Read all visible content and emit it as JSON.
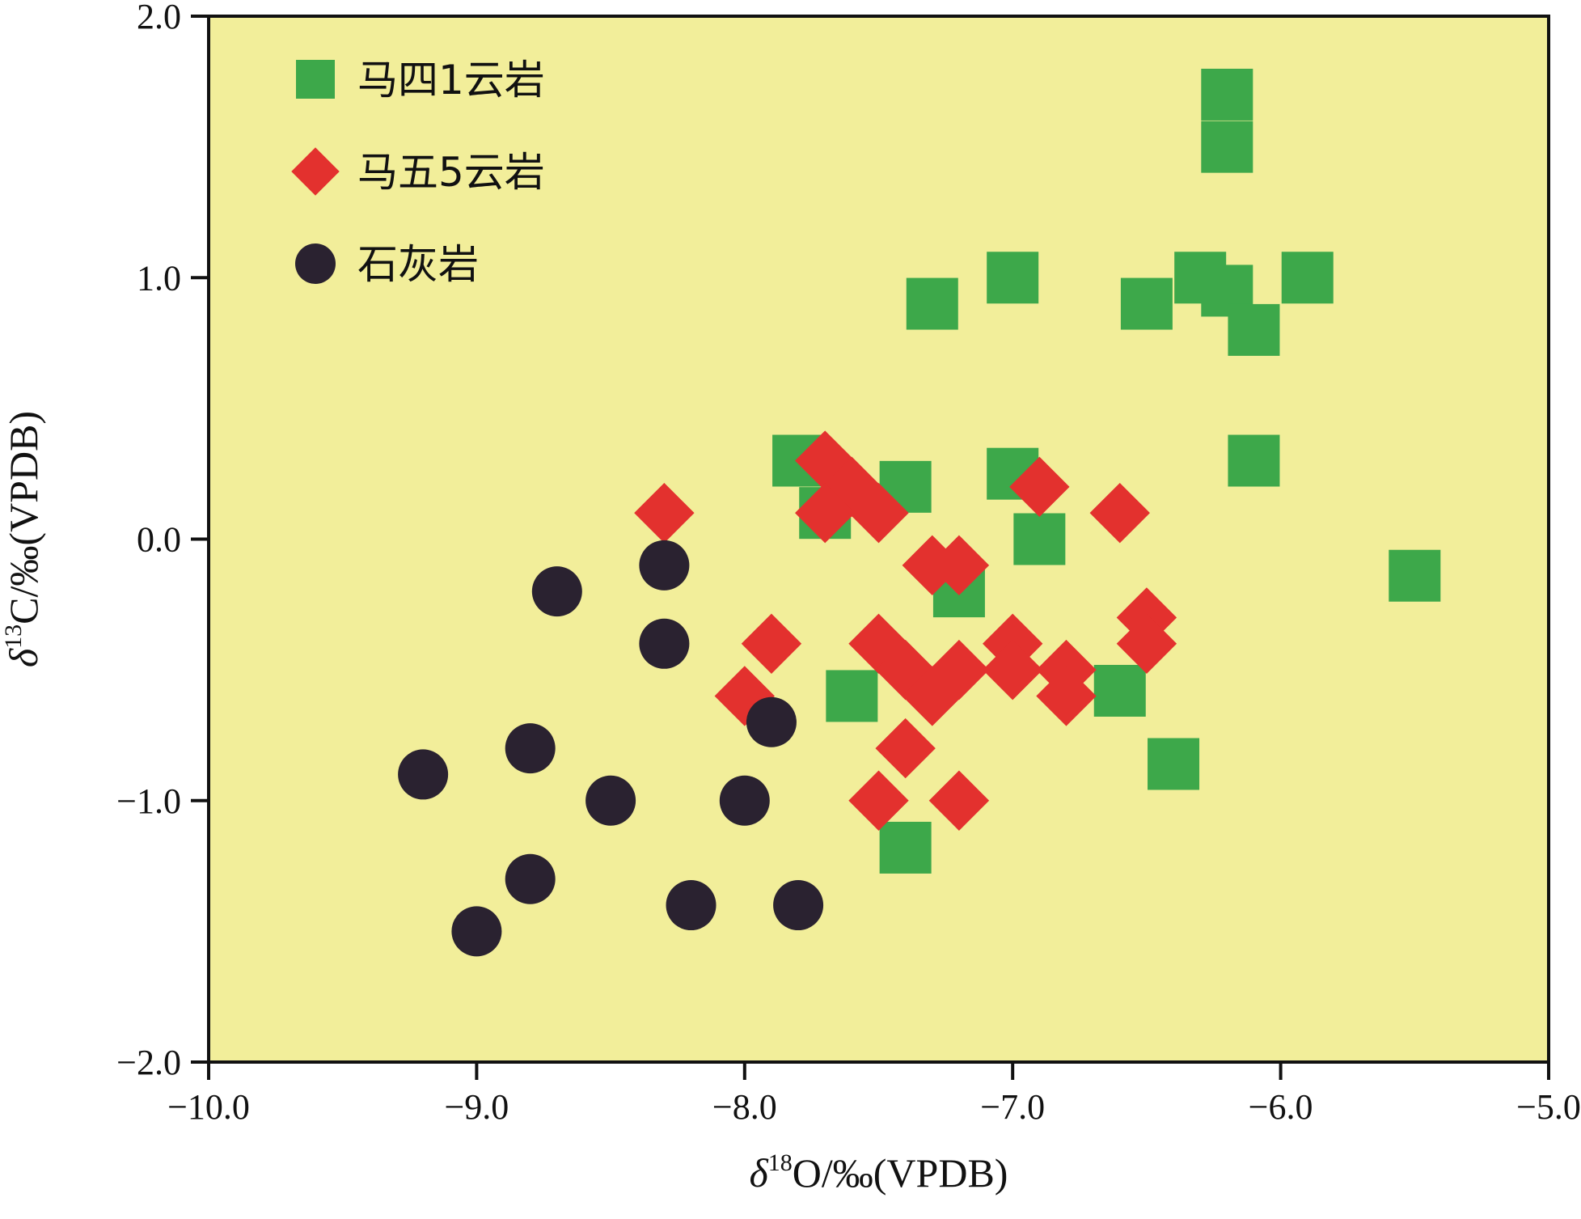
{
  "chart_data": {
    "type": "scatter",
    "xlabel_parts": [
      "δ",
      "18",
      "O/‰(VPDB)"
    ],
    "ylabel_parts": [
      "δ",
      "13",
      "C/‰(VPDB)"
    ],
    "xlim": [
      -10.0,
      -5.0
    ],
    "ylim": [
      -2.0,
      2.0
    ],
    "x_ticks": [
      -10.0,
      -9.0,
      -8.0,
      -7.0,
      -6.0,
      -5.0
    ],
    "x_tick_labels": [
      "−10.0",
      "−9.0",
      "−8.0",
      "−7.0",
      "−6.0",
      "−5.0"
    ],
    "y_ticks": [
      -2.0,
      -1.0,
      0.0,
      1.0,
      2.0
    ],
    "y_tick_labels": [
      "−2.0",
      "−1.0",
      "0.0",
      "1.0",
      "2.0"
    ],
    "grid": false,
    "legend_position": "top-left",
    "background_color": "#F2EE9A",
    "series": [
      {
        "name": "马四1云岩",
        "marker": "square",
        "color": "#3DA84A",
        "points": [
          [
            -6.2,
            1.7
          ],
          [
            -6.2,
            1.5
          ],
          [
            -7.0,
            1.0
          ],
          [
            -6.3,
            1.0
          ],
          [
            -6.2,
            0.95
          ],
          [
            -5.9,
            1.0
          ],
          [
            -7.3,
            0.9
          ],
          [
            -6.5,
            0.9
          ],
          [
            -6.1,
            0.8
          ],
          [
            -7.8,
            0.3
          ],
          [
            -7.4,
            0.2
          ],
          [
            -7.0,
            0.25
          ],
          [
            -6.1,
            0.3
          ],
          [
            -7.7,
            0.1
          ],
          [
            -6.9,
            0.0
          ],
          [
            -7.2,
            -0.2
          ],
          [
            -5.5,
            -0.14
          ],
          [
            -7.6,
            -0.6
          ],
          [
            -6.6,
            -0.58
          ],
          [
            -6.4,
            -0.86
          ],
          [
            -7.4,
            -1.18
          ]
        ]
      },
      {
        "name": "马五5云岩",
        "marker": "diamond",
        "color": "#E3312E",
        "points": [
          [
            -7.7,
            0.3
          ],
          [
            -7.6,
            0.2
          ],
          [
            -7.7,
            0.1
          ],
          [
            -7.5,
            0.1
          ],
          [
            -8.3,
            0.1
          ],
          [
            -6.9,
            0.2
          ],
          [
            -6.6,
            0.1
          ],
          [
            -7.3,
            -0.1
          ],
          [
            -7.2,
            -0.1
          ],
          [
            -7.9,
            -0.4
          ],
          [
            -7.5,
            -0.4
          ],
          [
            -7.4,
            -0.5
          ],
          [
            -7.3,
            -0.6
          ],
          [
            -7.2,
            -0.5
          ],
          [
            -7.0,
            -0.4
          ],
          [
            -7.0,
            -0.5
          ],
          [
            -6.8,
            -0.5
          ],
          [
            -6.8,
            -0.6
          ],
          [
            -6.5,
            -0.3
          ],
          [
            -6.5,
            -0.4
          ],
          [
            -8.0,
            -0.6
          ],
          [
            -7.4,
            -0.8
          ],
          [
            -7.5,
            -1.0
          ],
          [
            -7.2,
            -1.0
          ]
        ]
      },
      {
        "name": "石灰岩",
        "marker": "circle",
        "color": "#2A2230",
        "points": [
          [
            -8.3,
            -0.1
          ],
          [
            -8.7,
            -0.2
          ],
          [
            -8.3,
            -0.4
          ],
          [
            -7.9,
            -0.7
          ],
          [
            -8.8,
            -0.8
          ],
          [
            -9.2,
            -0.9
          ],
          [
            -8.5,
            -1.0
          ],
          [
            -8.0,
            -1.0
          ],
          [
            -8.8,
            -1.3
          ],
          [
            -8.2,
            -1.4
          ],
          [
            -7.8,
            -1.4
          ],
          [
            -9.0,
            -1.5
          ]
        ]
      }
    ]
  }
}
